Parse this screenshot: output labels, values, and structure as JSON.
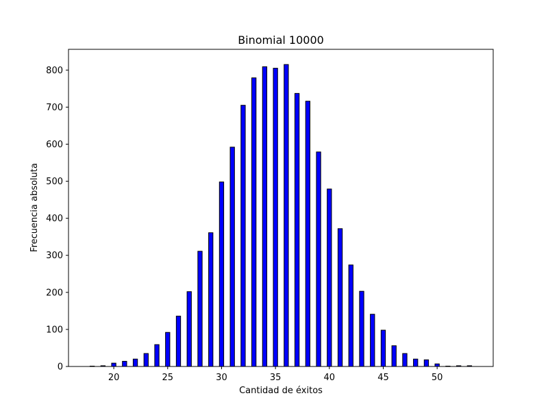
{
  "chart_data": {
    "type": "bar",
    "title": "Binomial 10000",
    "xlabel": "Cantidad de éxitos",
    "ylabel": "Frecuencia absoluta",
    "x": [
      18,
      19,
      20,
      21,
      22,
      23,
      24,
      25,
      26,
      27,
      28,
      29,
      30,
      31,
      32,
      33,
      34,
      35,
      36,
      37,
      38,
      39,
      40,
      41,
      42,
      43,
      44,
      45,
      46,
      47,
      48,
      49,
      50,
      51,
      52,
      53
    ],
    "values": [
      1,
      2,
      9,
      14,
      20,
      35,
      59,
      92,
      136,
      202,
      311,
      361,
      498,
      592,
      705,
      779,
      809,
      805,
      815,
      737,
      716,
      579,
      479,
      372,
      274,
      203,
      141,
      98,
      56,
      35,
      20,
      18,
      7,
      1,
      2,
      2
    ],
    "xlim": [
      15.8,
      55.2
    ],
    "ylim": [
      0,
      856
    ],
    "xticks": [
      20,
      25,
      30,
      35,
      40,
      45,
      50
    ],
    "yticks": [
      0,
      100,
      200,
      300,
      400,
      500,
      600,
      700,
      800
    ],
    "bar_color": "#0000ff",
    "edge_color": "#000000",
    "grid": false
  }
}
